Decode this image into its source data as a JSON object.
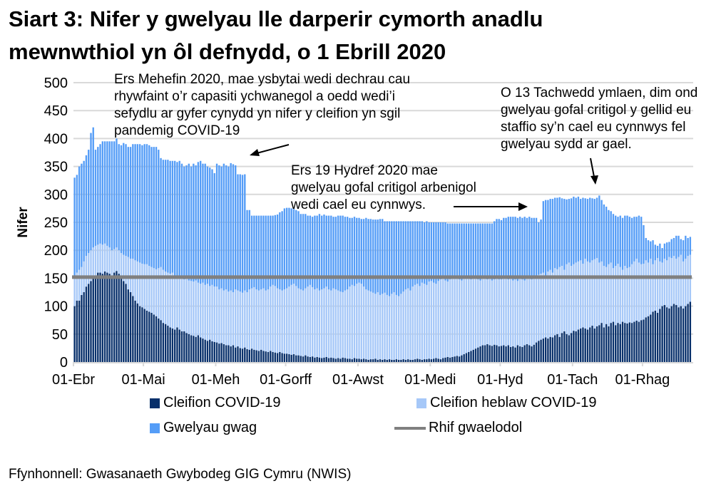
{
  "title_line1": "Siart 3: Nifer y gwelyau lle darperir cymorth anadlu",
  "title_line2": "mewnwthiol yn ôl defnydd, o 1 Ebrill 2020",
  "annotations": {
    "a1": [
      "Ers Mehefin 2020, mae ysbytai wedi dechrau cau",
      "rhywfaint o’r capasiti ychwanegol a oedd wedi’i",
      "sefydlu ar gyfer cynydd yn nifer y cleifion yn sgil",
      "pandemig COVID-19"
    ],
    "a2": [
      "Ers 19 Hydref 2020 mae",
      "gwelyau gofal critigol arbenigol",
      "wedi cael eu cynnwys."
    ],
    "a3": [
      "O 13 Tachwedd ymlaen, dim ond",
      "gwelyau gofal critigol y gellid eu",
      "staffio sy’n cael eu cynnwys fel",
      "gwelyau sydd ar gael."
    ]
  },
  "source": "Ffynhonnell: Gwasanaeth Gwybodeg GIG Cymru (NWIS)",
  "chart_data": {
    "type": "bar",
    "stacked": true,
    "ylabel": "Nifer",
    "xlabel": "",
    "ylim": [
      0,
      500
    ],
    "yticks": [
      0,
      50,
      100,
      150,
      200,
      250,
      300,
      350,
      400,
      450,
      500
    ],
    "grid": true,
    "legend_position": "bottom",
    "start_date": "01-Ebr",
    "x_tick_labels": [
      "01-Ebr",
      "01-Mai",
      "01-Meh",
      "01-Gorff",
      "01-Awst",
      "01-Medi",
      "01-Hyd",
      "01-Tach",
      "01-Rhag"
    ],
    "x_tick_day_index": [
      0,
      30,
      61,
      91,
      122,
      153,
      183,
      214,
      244
    ],
    "series": [
      {
        "name": "Cleifion COVID-19",
        "color": "#08306B",
        "values": [
          100,
          110,
          110,
          120,
          125,
          135,
          140,
          145,
          150,
          155,
          160,
          160,
          158,
          162,
          160,
          158,
          155,
          160,
          163,
          158,
          150,
          145,
          140,
          130,
          125,
          118,
          110,
          105,
          100,
          98,
          95,
          92,
          90,
          88,
          85,
          82,
          78,
          75,
          70,
          68,
          65,
          62,
          60,
          58,
          62,
          58,
          55,
          55,
          52,
          50,
          48,
          47,
          45,
          48,
          44,
          42,
          40,
          38,
          40,
          37,
          36,
          35,
          33,
          34,
          32,
          30,
          30,
          28,
          30,
          26,
          28,
          25,
          24,
          26,
          23,
          22,
          24,
          22,
          21,
          20,
          22,
          20,
          19,
          18,
          20,
          18,
          17,
          16,
          18,
          16,
          15,
          15,
          14,
          13,
          14,
          12,
          12,
          11,
          10,
          12,
          10,
          9,
          10,
          8,
          9,
          8,
          7,
          8,
          9,
          7,
          8,
          7,
          6,
          7,
          6,
          8,
          7,
          6,
          6,
          5,
          7,
          6,
          6,
          5,
          6,
          5,
          4,
          5,
          5,
          6,
          4,
          5,
          4,
          5,
          4,
          5,
          4,
          4,
          5,
          4,
          4,
          5,
          4,
          5,
          4,
          4,
          5,
          6,
          5,
          4,
          5,
          5,
          6,
          5,
          6,
          7,
          6,
          5,
          7,
          8,
          9,
          8,
          9,
          10,
          11,
          10,
          12,
          14,
          16,
          18,
          20,
          22,
          24,
          26,
          28,
          30,
          30,
          32,
          30,
          29,
          31,
          30,
          28,
          29,
          30,
          28,
          30,
          27,
          28,
          26,
          30,
          28,
          27,
          30,
          32,
          30,
          28,
          31,
          35,
          38,
          40,
          42,
          44,
          42,
          45,
          44,
          48,
          50,
          45,
          52,
          55,
          50,
          48,
          52,
          56,
          55,
          58,
          60,
          62,
          60,
          58,
          62,
          65,
          60,
          64,
          66,
          70,
          62,
          68,
          64,
          70,
          72,
          66,
          70,
          68,
          72,
          70,
          69,
          71,
          70,
          72,
          74,
          72,
          75,
          76,
          80,
          82,
          85,
          90,
          92,
          88,
          95,
          100,
          102,
          98,
          96,
          100,
          104,
          102,
          98,
          100,
          96,
          100,
          104,
          108
        ]
      },
      {
        "name": "Cleifion heblaw COVID-19",
        "color": "#A6C8F8",
        "values": [
          50,
          50,
          55,
          50,
          55,
          55,
          55,
          55,
          55,
          53,
          50,
          52,
          52,
          50,
          48,
          47,
          45,
          42,
          42,
          42,
          45,
          47,
          50,
          58,
          60,
          67,
          72,
          75,
          78,
          78,
          80,
          83,
          82,
          82,
          83,
          84,
          90,
          95,
          95,
          94,
          95,
          96,
          100,
          97,
          90,
          92,
          97,
          93,
          98,
          96,
          97,
          97,
          101,
          94,
          96,
          100,
          98,
          102,
          96,
          101,
          99,
          100,
          97,
          98,
          96,
          100,
          96,
          100,
          95,
          104,
          100,
          101,
          100,
          102,
          102,
          108,
          108,
          112,
          109,
          108,
          108,
          112,
          109,
          112,
          115,
          120,
          119,
          116,
          112,
          112,
          115,
          117,
          121,
          125,
          126,
          124,
          120,
          119,
          118,
          120,
          125,
          129,
          124,
          122,
          123,
          120,
          123,
          124,
          126,
          123,
          120,
          125,
          124,
          121,
          120,
          117,
          121,
          124,
          129,
          133,
          129,
          134,
          136,
          135,
          129,
          125,
          124,
          121,
          119,
          116,
          121,
          115,
          118,
          119,
          116,
          113,
          118,
          121,
          115,
          114,
          118,
          121,
          126,
          127,
          124,
          131,
          133,
          134,
          131,
          138,
          135,
          133,
          138,
          140,
          136,
          133,
          139,
          143,
          143,
          138,
          135,
          140,
          141,
          142,
          139,
          138,
          134,
          136,
          136,
          132,
          128,
          130,
          126,
          122,
          118,
          120,
          122,
          116,
          120,
          117,
          117,
          120,
          120,
          119,
          120,
          124,
          118,
          123,
          118,
          122,
          115,
          122,
          121,
          116,
          118,
          122,
          120,
          119,
          117,
          118,
          118,
          118,
          111,
          120,
          120,
          116,
          120,
          116,
          125,
          120,
          110,
          125,
          130,
          120,
          119,
          123,
          122,
          122,
          114,
          125,
          122,
          116,
          117,
          124,
          122,
          112,
          110,
          110,
          102,
          111,
          108,
          96,
          106,
          106,
          102,
          93,
          102,
          99,
          99,
          105,
          108,
          111,
          106,
          100,
          100,
          102,
          96,
          100,
          85,
          90,
          98,
          85,
          78,
          83,
          84,
          92,
          86,
          86,
          83,
          90,
          92,
          84,
          85,
          86,
          84
        ]
      },
      {
        "name": "Gwelyau gwag",
        "color": "#559DF7",
        "values": [
          180,
          175,
          185,
          185,
          180,
          180,
          185,
          210,
          215,
          172,
          175,
          178,
          185,
          183,
          187,
          190,
          195,
          193,
          195,
          190,
          193,
          200,
          200,
          197,
          200,
          205,
          208,
          210,
          212,
          212,
          215,
          215,
          216,
          215,
          217,
          219,
          212,
          195,
          197,
          200,
          202,
          202,
          200,
          205,
          206,
          210,
          203,
          202,
          202,
          209,
          205,
          211,
          206,
          216,
          220,
          213,
          217,
          210,
          212,
          207,
          203,
          220,
          222,
          218,
          227,
          222,
          224,
          228,
          229,
          222,
          208,
          210,
          211,
          208,
          147,
          142,
          130,
          128,
          132,
          134,
          132,
          130,
          134,
          132,
          127,
          124,
          127,
          132,
          138,
          142,
          145,
          144,
          141,
          137,
          134,
          136,
          138,
          135,
          137,
          133,
          127,
          124,
          126,
          132,
          130,
          137,
          132,
          132,
          127,
          132,
          134,
          128,
          130,
          134,
          136,
          137,
          132,
          130,
          123,
          120,
          124,
          118,
          116,
          116,
          121,
          128,
          128,
          130,
          131,
          133,
          130,
          136,
          134,
          128,
          132,
          134,
          130,
          127,
          132,
          134,
          130,
          126,
          122,
          120,
          124,
          117,
          114,
          112,
          116,
          110,
          110,
          114,
          106,
          105,
          108,
          110,
          105,
          102,
          100,
          104,
          104,
          100,
          98,
          96,
          98,
          100,
          102,
          98,
          96,
          98,
          100,
          96,
          98,
          100,
          102,
          98,
          96,
          100,
          98,
          102,
          104,
          106,
          108,
          106,
          108,
          106,
          112,
          110,
          114,
          112,
          113,
          110,
          110,
          114,
          108,
          108,
          110,
          108,
          106,
          94,
          97,
          128,
          135,
          128,
          127,
          132,
          126,
          128,
          125,
          121,
          127,
          116,
          114,
          121,
          121,
          116,
          116,
          110,
          118,
          108,
          112,
          116,
          111,
          108,
          108,
          120,
          110,
          110,
          108,
          97,
          92,
          97,
          90,
          84,
          92,
          93,
          90,
          94,
          90,
          83,
          80,
          75,
          84,
          85,
          69,
          40,
          40,
          31,
          43,
          28,
          22,
          32,
          26,
          27,
          32,
          27,
          34,
          32,
          41,
          38,
          28,
          38,
          41,
          32,
          32
        ]
      }
    ],
    "reference_line": {
      "name": "Rhif gwaelodol",
      "value": 152,
      "color": "#808080"
    }
  }
}
